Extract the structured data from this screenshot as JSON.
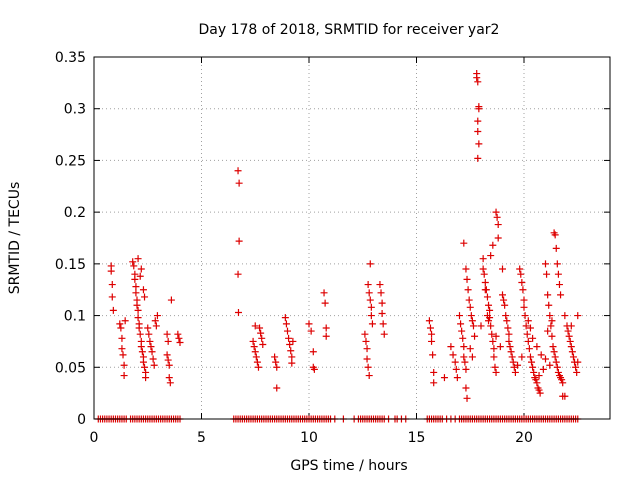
{
  "chart_data": {
    "type": "scatter",
    "title": "Day 178 of 2018, SRMTID for receiver yar2",
    "xlabel": "GPS time / hours",
    "ylabel": "SRMTID / TECUs",
    "xlim": [
      0,
      24
    ],
    "ylim": [
      0,
      0.35
    ],
    "x_ticks": [
      0,
      5,
      10,
      15,
      20
    ],
    "y_ticks": [
      0,
      0.05,
      0.1,
      0.15,
      0.2,
      0.25,
      0.3,
      0.35
    ],
    "x_tick_labels": [
      "0",
      "5",
      "10",
      "15",
      "20"
    ],
    "y_tick_labels": [
      "0",
      "0.05",
      "0.1",
      "0.15",
      "0.2",
      "0.25",
      "0.3",
      "0.35"
    ],
    "grid": true,
    "marker": "+",
    "color": "#dd0000",
    "series": [
      {
        "name": "SRMTID",
        "points": [
          [
            0.8,
            0.148
          ],
          [
            0.8,
            0.143
          ],
          [
            0.85,
            0.13
          ],
          [
            0.85,
            0.118
          ],
          [
            0.9,
            0.105
          ],
          [
            1.2,
            0.092
          ],
          [
            1.25,
            0.088
          ],
          [
            1.3,
            0.078
          ],
          [
            1.3,
            0.068
          ],
          [
            1.35,
            0.062
          ],
          [
            1.4,
            0.052
          ],
          [
            1.4,
            0.042
          ],
          [
            1.45,
            0.095
          ],
          [
            1.8,
            0.152
          ],
          [
            1.85,
            0.148
          ],
          [
            1.9,
            0.14
          ],
          [
            1.9,
            0.135
          ],
          [
            1.95,
            0.128
          ],
          [
            1.95,
            0.122
          ],
          [
            2.0,
            0.115
          ],
          [
            2.0,
            0.11
          ],
          [
            2.05,
            0.105
          ],
          [
            2.05,
            0.098
          ],
          [
            2.1,
            0.092
          ],
          [
            2.1,
            0.088
          ],
          [
            2.15,
            0.082
          ],
          [
            2.2,
            0.075
          ],
          [
            2.2,
            0.07
          ],
          [
            2.25,
            0.065
          ],
          [
            2.3,
            0.06
          ],
          [
            2.3,
            0.055
          ],
          [
            2.35,
            0.05
          ],
          [
            2.4,
            0.045
          ],
          [
            2.4,
            0.04
          ],
          [
            2.2,
            0.145
          ],
          [
            2.15,
            0.138
          ],
          [
            2.05,
            0.155
          ],
          [
            2.3,
            0.125
          ],
          [
            2.35,
            0.118
          ],
          [
            2.5,
            0.088
          ],
          [
            2.55,
            0.082
          ],
          [
            2.6,
            0.075
          ],
          [
            2.65,
            0.07
          ],
          [
            2.7,
            0.065
          ],
          [
            2.75,
            0.058
          ],
          [
            2.8,
            0.052
          ],
          [
            2.85,
            0.095
          ],
          [
            2.9,
            0.09
          ],
          [
            2.95,
            0.1
          ],
          [
            3.4,
            0.062
          ],
          [
            3.45,
            0.057
          ],
          [
            3.5,
            0.052
          ],
          [
            3.5,
            0.04
          ],
          [
            3.55,
            0.035
          ],
          [
            3.6,
            0.115
          ],
          [
            3.4,
            0.082
          ],
          [
            3.45,
            0.075
          ],
          [
            3.9,
            0.082
          ],
          [
            3.95,
            0.078
          ],
          [
            4.0,
            0.074
          ],
          [
            6.7,
            0.24
          ],
          [
            6.75,
            0.228
          ],
          [
            6.75,
            0.172
          ],
          [
            6.7,
            0.14
          ],
          [
            6.72,
            0.103
          ],
          [
            7.4,
            0.075
          ],
          [
            7.45,
            0.07
          ],
          [
            7.5,
            0.065
          ],
          [
            7.55,
            0.06
          ],
          [
            7.6,
            0.055
          ],
          [
            7.65,
            0.05
          ],
          [
            7.7,
            0.088
          ],
          [
            7.75,
            0.083
          ],
          [
            7.8,
            0.078
          ],
          [
            7.85,
            0.072
          ],
          [
            7.5,
            0.09
          ],
          [
            8.4,
            0.06
          ],
          [
            8.45,
            0.055
          ],
          [
            8.5,
            0.05
          ],
          [
            8.5,
            0.03
          ],
          [
            8.9,
            0.098
          ],
          [
            8.95,
            0.092
          ],
          [
            9.0,
            0.085
          ],
          [
            9.05,
            0.078
          ],
          [
            9.1,
            0.072
          ],
          [
            9.15,
            0.066
          ],
          [
            9.2,
            0.06
          ],
          [
            9.2,
            0.054
          ],
          [
            9.25,
            0.075
          ],
          [
            10.0,
            0.092
          ],
          [
            10.1,
            0.085
          ],
          [
            10.2,
            0.065
          ],
          [
            10.2,
            0.05
          ],
          [
            10.25,
            0.048
          ],
          [
            10.7,
            0.122
          ],
          [
            10.75,
            0.112
          ],
          [
            10.8,
            0.088
          ],
          [
            10.8,
            0.08
          ],
          [
            12.6,
            0.082
          ],
          [
            12.65,
            0.075
          ],
          [
            12.7,
            0.068
          ],
          [
            12.7,
            0.058
          ],
          [
            12.75,
            0.05
          ],
          [
            12.8,
            0.042
          ],
          [
            12.75,
            0.13
          ],
          [
            12.8,
            0.122
          ],
          [
            12.85,
            0.115
          ],
          [
            12.9,
            0.108
          ],
          [
            12.85,
            0.15
          ],
          [
            12.9,
            0.1
          ],
          [
            12.95,
            0.092
          ],
          [
            13.3,
            0.13
          ],
          [
            13.35,
            0.122
          ],
          [
            13.4,
            0.112
          ],
          [
            13.4,
            0.102
          ],
          [
            13.45,
            0.092
          ],
          [
            13.5,
            0.082
          ],
          [
            15.6,
            0.095
          ],
          [
            15.65,
            0.088
          ],
          [
            15.7,
            0.082
          ],
          [
            15.7,
            0.075
          ],
          [
            15.75,
            0.062
          ],
          [
            15.8,
            0.045
          ],
          [
            15.8,
            0.035
          ],
          [
            16.3,
            0.04
          ],
          [
            16.6,
            0.07
          ],
          [
            16.7,
            0.062
          ],
          [
            16.8,
            0.055
          ],
          [
            16.85,
            0.048
          ],
          [
            16.9,
            0.04
          ],
          [
            17.0,
            0.1
          ],
          [
            17.05,
            0.092
          ],
          [
            17.1,
            0.085
          ],
          [
            17.15,
            0.078
          ],
          [
            17.2,
            0.07
          ],
          [
            17.2,
            0.06
          ],
          [
            17.25,
            0.055
          ],
          [
            17.3,
            0.048
          ],
          [
            17.3,
            0.03
          ],
          [
            17.35,
            0.02
          ],
          [
            17.2,
            0.17
          ],
          [
            17.3,
            0.145
          ],
          [
            17.35,
            0.135
          ],
          [
            17.4,
            0.125
          ],
          [
            17.45,
            0.115
          ],
          [
            17.5,
            0.108
          ],
          [
            17.55,
            0.1
          ],
          [
            17.6,
            0.095
          ],
          [
            17.65,
            0.09
          ],
          [
            17.8,
            0.334
          ],
          [
            17.8,
            0.33
          ],
          [
            17.85,
            0.326
          ],
          [
            17.9,
            0.302
          ],
          [
            17.9,
            0.3
          ],
          [
            17.85,
            0.288
          ],
          [
            17.85,
            0.278
          ],
          [
            17.9,
            0.266
          ],
          [
            17.85,
            0.252
          ],
          [
            18.1,
            0.155
          ],
          [
            18.1,
            0.145
          ],
          [
            18.15,
            0.14
          ],
          [
            18.2,
            0.132
          ],
          [
            18.25,
            0.125
          ],
          [
            18.3,
            0.118
          ],
          [
            18.35,
            0.11
          ],
          [
            18.4,
            0.105
          ],
          [
            18.4,
            0.098
          ],
          [
            18.45,
            0.09
          ],
          [
            18.5,
            0.082
          ],
          [
            18.55,
            0.075
          ],
          [
            18.6,
            0.068
          ],
          [
            18.6,
            0.06
          ],
          [
            18.65,
            0.05
          ],
          [
            18.7,
            0.045
          ],
          [
            18.7,
            0.2
          ],
          [
            18.75,
            0.195
          ],
          [
            18.8,
            0.188
          ],
          [
            18.8,
            0.175
          ],
          [
            18.55,
            0.168
          ],
          [
            18.45,
            0.158
          ],
          [
            18.2,
            0.125
          ],
          [
            18.3,
            0.1
          ],
          [
            18.35,
            0.095
          ],
          [
            19.0,
            0.145
          ],
          [
            19.0,
            0.12
          ],
          [
            19.05,
            0.115
          ],
          [
            19.1,
            0.11
          ],
          [
            19.15,
            0.1
          ],
          [
            19.2,
            0.095
          ],
          [
            19.25,
            0.088
          ],
          [
            19.3,
            0.082
          ],
          [
            19.3,
            0.075
          ],
          [
            19.35,
            0.07
          ],
          [
            19.4,
            0.065
          ],
          [
            19.45,
            0.06
          ],
          [
            19.5,
            0.055
          ],
          [
            19.55,
            0.05
          ],
          [
            19.6,
            0.045
          ],
          [
            19.8,
            0.145
          ],
          [
            19.85,
            0.14
          ],
          [
            19.9,
            0.132
          ],
          [
            19.95,
            0.125
          ],
          [
            20.0,
            0.115
          ],
          [
            20.0,
            0.108
          ],
          [
            20.05,
            0.1
          ],
          [
            20.1,
            0.09
          ],
          [
            20.15,
            0.082
          ],
          [
            20.2,
            0.075
          ],
          [
            20.25,
            0.068
          ],
          [
            20.3,
            0.06
          ],
          [
            20.35,
            0.055
          ],
          [
            20.4,
            0.05
          ],
          [
            20.45,
            0.045
          ],
          [
            20.5,
            0.04
          ],
          [
            20.55,
            0.038
          ],
          [
            20.6,
            0.035
          ],
          [
            20.65,
            0.03
          ],
          [
            20.7,
            0.028
          ],
          [
            20.75,
            0.025
          ],
          [
            21.0,
            0.15
          ],
          [
            21.05,
            0.14
          ],
          [
            21.1,
            0.12
          ],
          [
            21.15,
            0.11
          ],
          [
            21.2,
            0.1
          ],
          [
            21.25,
            0.09
          ],
          [
            21.3,
            0.08
          ],
          [
            21.35,
            0.07
          ],
          [
            21.4,
            0.065
          ],
          [
            21.45,
            0.06
          ],
          [
            21.5,
            0.055
          ],
          [
            21.55,
            0.05
          ],
          [
            21.6,
            0.045
          ],
          [
            21.65,
            0.042
          ],
          [
            21.7,
            0.04
          ],
          [
            21.75,
            0.038
          ],
          [
            21.8,
            0.035
          ],
          [
            21.4,
            0.18
          ],
          [
            21.45,
            0.178
          ],
          [
            21.5,
            0.165
          ],
          [
            21.55,
            0.15
          ],
          [
            21.6,
            0.14
          ],
          [
            21.65,
            0.13
          ],
          [
            21.7,
            0.12
          ],
          [
            21.8,
            0.022
          ],
          [
            21.9,
            0.022
          ],
          [
            22.0,
            0.09
          ],
          [
            22.05,
            0.085
          ],
          [
            22.1,
            0.08
          ],
          [
            22.15,
            0.075
          ],
          [
            22.2,
            0.07
          ],
          [
            22.25,
            0.065
          ],
          [
            22.3,
            0.06
          ],
          [
            22.35,
            0.055
          ],
          [
            22.4,
            0.05
          ],
          [
            22.45,
            0.045
          ],
          [
            22.5,
            0.1
          ],
          [
            22.5,
            0.055
          ],
          [
            20.2,
            0.095
          ],
          [
            20.3,
            0.088
          ],
          [
            20.4,
            0.078
          ],
          [
            20.6,
            0.07
          ],
          [
            20.8,
            0.062
          ],
          [
            21.0,
            0.058
          ],
          [
            21.2,
            0.052
          ],
          [
            20.9,
            0.048
          ],
          [
            20.7,
            0.042
          ],
          [
            19.9,
            0.06
          ],
          [
            19.7,
            0.052
          ],
          [
            18.9,
            0.07
          ],
          [
            18.7,
            0.08
          ],
          [
            18.0,
            0.09
          ],
          [
            17.7,
            0.08
          ],
          [
            17.5,
            0.068
          ],
          [
            17.6,
            0.06
          ],
          [
            22.2,
            0.09
          ],
          [
            21.9,
            0.1
          ],
          [
            21.3,
            0.095
          ],
          [
            21.1,
            0.085
          ]
        ]
      }
    ],
    "zero_points_x": [
      0.2,
      0.3,
      0.4,
      0.5,
      0.6,
      0.7,
      0.8,
      0.9,
      1.0,
      1.1,
      1.2,
      1.3,
      1.4,
      1.5,
      1.7,
      1.8,
      1.9,
      2.0,
      2.1,
      2.2,
      2.3,
      2.4,
      2.5,
      2.6,
      2.7,
      2.8,
      2.9,
      3.0,
      3.1,
      3.2,
      3.3,
      3.4,
      3.5,
      3.6,
      3.7,
      3.8,
      3.9,
      4.0,
      6.5,
      6.6,
      6.7,
      6.8,
      6.9,
      7.0,
      7.1,
      7.2,
      7.3,
      7.4,
      7.5,
      7.6,
      7.7,
      7.8,
      7.9,
      8.0,
      8.1,
      8.2,
      8.3,
      8.4,
      8.5,
      8.6,
      8.7,
      8.8,
      8.9,
      9.0,
      9.1,
      9.2,
      9.3,
      9.4,
      9.5,
      9.6,
      9.7,
      9.8,
      9.9,
      10.0,
      10.1,
      10.2,
      10.3,
      10.4,
      10.5,
      10.6,
      10.7,
      10.8,
      10.9,
      11.0,
      11.2,
      11.6,
      12.1,
      12.3,
      12.4,
      12.5,
      12.6,
      12.7,
      12.8,
      12.9,
      13.0,
      13.1,
      13.2,
      13.3,
      13.4,
      13.5,
      13.7,
      14.0,
      14.1,
      14.3,
      14.5,
      15.5,
      15.6,
      15.7,
      15.8,
      15.9,
      16.0,
      16.1,
      16.2,
      16.4,
      16.6,
      16.8,
      17.0,
      17.1,
      17.2,
      17.3,
      17.4,
      17.5,
      17.6,
      17.7,
      17.8,
      17.9,
      18.0,
      18.1,
      18.2,
      18.3,
      18.4,
      18.5,
      18.6,
      18.7,
      18.8,
      18.9,
      19.0,
      19.1,
      19.2,
      19.3,
      19.4,
      19.5,
      19.6,
      19.7,
      19.8,
      19.9,
      20.0,
      20.1,
      20.2,
      20.3,
      20.4,
      20.5,
      20.6,
      20.7,
      20.8,
      20.9,
      21.0,
      21.1,
      21.2,
      21.3,
      21.4,
      21.5,
      21.6,
      21.7,
      21.8,
      21.9,
      22.0,
      22.1,
      22.2,
      22.3,
      22.4,
      22.5
    ]
  }
}
